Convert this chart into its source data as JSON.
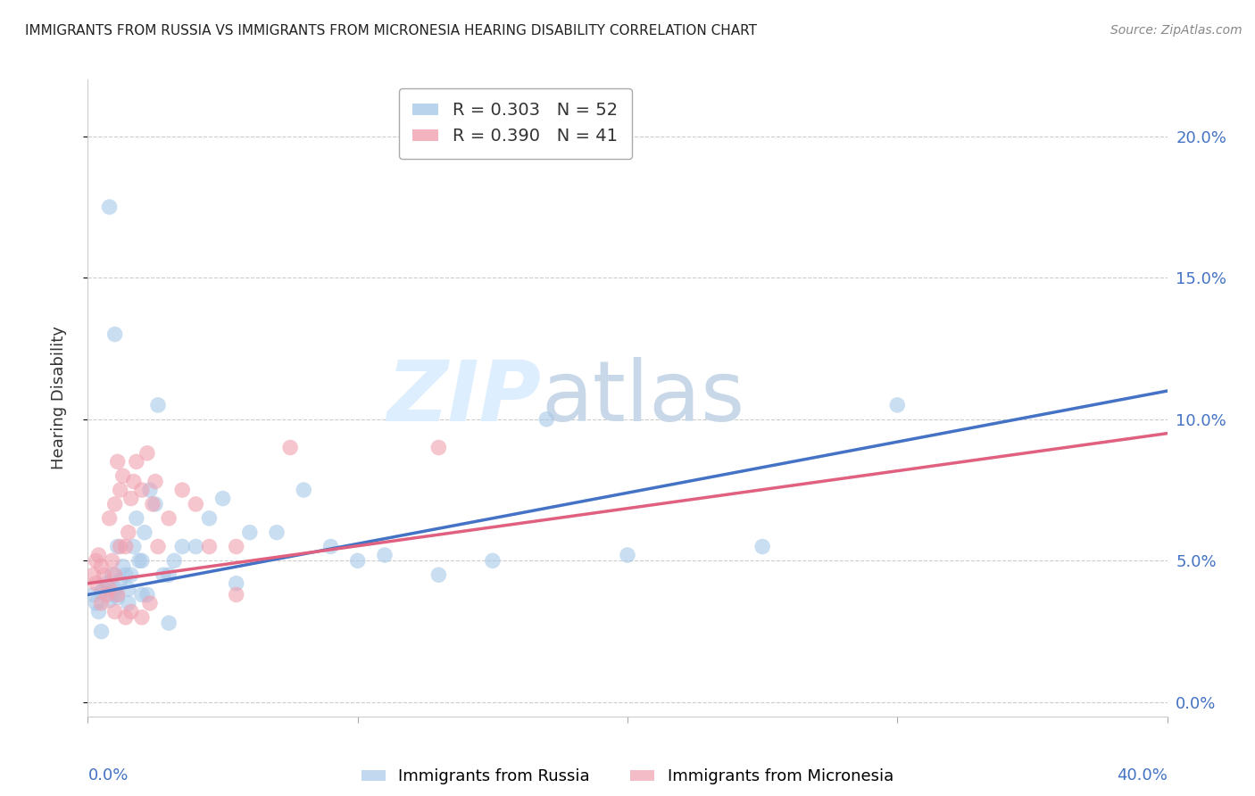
{
  "title": "IMMIGRANTS FROM RUSSIA VS IMMIGRANTS FROM MICRONESIA HEARING DISABILITY CORRELATION CHART",
  "source": "Source: ZipAtlas.com",
  "ylabel": "Hearing Disability",
  "yticks": [
    "0.0%",
    "5.0%",
    "10.0%",
    "15.0%",
    "20.0%"
  ],
  "ytick_vals": [
    0,
    5,
    10,
    15,
    20
  ],
  "xlim": [
    0,
    40
  ],
  "ylim": [
    -0.5,
    22
  ],
  "russia_color": "#a8c8e8",
  "micronesia_color": "#f0a0b0",
  "russia_line_color": "#4472c4",
  "micronesia_line_color": "#e06080",
  "background_color": "#ffffff",
  "grid_color": "#cccccc",
  "title_fontsize": 11,
  "tick_label_color": "#4472c4",
  "russia_legend": "R = 0.303   N = 52",
  "micronesia_legend": "R = 0.390   N = 41",
  "russia_series_label": "Immigrants from Russia",
  "micronesia_series_label": "Immigrants from Micronesia",
  "russia_x": [
    0.2,
    0.3,
    0.4,
    0.5,
    0.6,
    0.7,
    0.8,
    0.9,
    1.0,
    1.0,
    1.1,
    1.1,
    1.2,
    1.3,
    1.4,
    1.5,
    1.6,
    1.7,
    1.8,
    1.9,
    2.0,
    2.1,
    2.2,
    2.3,
    2.5,
    2.6,
    2.8,
    3.0,
    3.2,
    3.5,
    4.0,
    4.5,
    5.0,
    5.5,
    6.0,
    7.0,
    8.0,
    9.0,
    10.0,
    11.0,
    13.0,
    15.0,
    17.0,
    20.0,
    25.0,
    30.0,
    0.5,
    0.8,
    1.0,
    1.5,
    2.0,
    3.0
  ],
  "russia_y": [
    3.8,
    3.5,
    3.2,
    3.9,
    4.0,
    4.2,
    3.6,
    4.5,
    4.0,
    3.8,
    5.5,
    3.7,
    4.3,
    4.8,
    4.5,
    4.0,
    4.5,
    5.5,
    6.5,
    5.0,
    5.0,
    6.0,
    3.8,
    7.5,
    7.0,
    10.5,
    4.5,
    4.5,
    5.0,
    5.5,
    5.5,
    6.5,
    7.2,
    4.2,
    6.0,
    6.0,
    7.5,
    5.5,
    5.0,
    5.2,
    4.5,
    5.0,
    10.0,
    5.2,
    5.5,
    10.5,
    2.5,
    17.5,
    13.0,
    3.5,
    3.8,
    2.8
  ],
  "micronesia_x": [
    0.2,
    0.3,
    0.4,
    0.5,
    0.6,
    0.7,
    0.8,
    0.9,
    1.0,
    1.0,
    1.1,
    1.2,
    1.3,
    1.4,
    1.5,
    1.6,
    1.7,
    1.8,
    2.0,
    2.2,
    2.4,
    2.5,
    2.6,
    3.0,
    3.5,
    4.0,
    4.5,
    5.5,
    7.5,
    13.0,
    0.3,
    0.5,
    0.8,
    1.0,
    1.1,
    1.2,
    1.4,
    1.6,
    2.0,
    2.3,
    5.5
  ],
  "micronesia_y": [
    4.5,
    5.0,
    5.2,
    4.8,
    4.5,
    3.8,
    6.5,
    5.0,
    7.0,
    3.2,
    8.5,
    7.5,
    8.0,
    5.5,
    6.0,
    7.2,
    7.8,
    8.5,
    7.5,
    8.8,
    7.0,
    7.8,
    5.5,
    6.5,
    7.5,
    7.0,
    5.5,
    5.5,
    9.0,
    9.0,
    4.2,
    3.5,
    4.0,
    4.5,
    3.8,
    5.5,
    3.0,
    3.2,
    3.0,
    3.5,
    3.8
  ],
  "russia_line_x0": 0,
  "russia_line_y0": 3.8,
  "russia_line_x1": 40,
  "russia_line_y1": 11.0,
  "micronesia_line_x0": 0,
  "micronesia_line_y0": 4.2,
  "micronesia_line_x1": 40,
  "micronesia_line_y1": 9.5
}
